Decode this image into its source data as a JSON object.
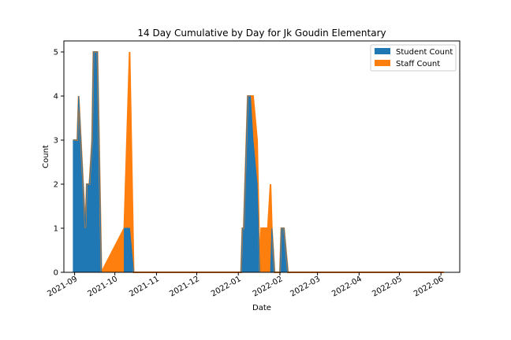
{
  "chart_data": {
    "type": "area",
    "title": "14 Day Cumulative by Day for Jk Goudin Elementary",
    "xlabel": "Date",
    "ylabel": "Count",
    "x_ticks": [
      "2021-09",
      "2021-10",
      "2021-11",
      "2021-12",
      "2022-01",
      "2022-02",
      "2022-03",
      "2022-04",
      "2022-05",
      "2022-06"
    ],
    "x_tick_dates": [
      "2021-09-01",
      "2021-10-01",
      "2021-11-01",
      "2021-12-01",
      "2022-01-01",
      "2022-02-01",
      "2022-03-01",
      "2022-04-01",
      "2022-05-01",
      "2022-06-01"
    ],
    "y_ticks": [
      "0",
      "1",
      "2",
      "3",
      "4",
      "5"
    ],
    "xlim": [
      "2021-08-24",
      "2022-06-15"
    ],
    "ylim": [
      0,
      5.25
    ],
    "grid": false,
    "legend_position": "top-right",
    "stacked": true,
    "series": [
      {
        "name": "Student Count",
        "color": "#1f77b4",
        "points": [
          [
            "2021-08-31",
            0
          ],
          [
            "2021-08-31",
            3
          ],
          [
            "2021-09-03",
            3
          ],
          [
            "2021-09-04",
            4
          ],
          [
            "2021-09-09",
            1
          ],
          [
            "2021-09-10",
            2
          ],
          [
            "2021-09-12",
            2
          ],
          [
            "2021-09-14",
            3
          ],
          [
            "2021-09-15",
            5
          ],
          [
            "2021-09-18",
            5
          ],
          [
            "2021-09-21",
            0
          ],
          [
            "2021-10-08",
            0
          ],
          [
            "2021-10-08",
            1
          ],
          [
            "2021-10-12",
            1
          ],
          [
            "2021-10-15",
            0
          ],
          [
            "2022-01-03",
            0
          ],
          [
            "2022-01-04",
            1
          ],
          [
            "2022-01-05",
            1
          ],
          [
            "2022-01-08",
            4
          ],
          [
            "2022-01-10",
            4
          ],
          [
            "2022-01-12",
            3
          ],
          [
            "2022-01-15",
            2
          ],
          [
            "2022-01-17",
            0
          ],
          [
            "2022-01-25",
            0
          ],
          [
            "2022-01-26",
            1
          ],
          [
            "2022-01-28",
            0
          ],
          [
            "2022-02-01",
            0
          ],
          [
            "2022-02-02",
            1
          ],
          [
            "2022-02-04",
            1
          ],
          [
            "2022-02-07",
            0
          ],
          [
            "2022-06-03",
            0
          ]
        ]
      },
      {
        "name": "Staff Count",
        "color": "#ff7f0e",
        "points": [
          [
            "2021-08-31",
            0
          ],
          [
            "2021-08-31",
            0
          ],
          [
            "2021-09-03",
            0
          ],
          [
            "2021-09-04",
            0
          ],
          [
            "2021-09-09",
            0
          ],
          [
            "2021-09-10",
            0
          ],
          [
            "2021-09-12",
            0
          ],
          [
            "2021-09-14",
            0
          ],
          [
            "2021-09-15",
            0
          ],
          [
            "2021-09-18",
            0
          ],
          [
            "2021-09-21",
            0
          ],
          [
            "2021-10-08",
            0
          ],
          [
            "2021-10-08",
            0
          ],
          [
            "2021-10-12",
            4
          ],
          [
            "2021-10-15",
            0
          ],
          [
            "2022-01-03",
            0
          ],
          [
            "2022-01-04",
            0
          ],
          [
            "2022-01-05",
            0
          ],
          [
            "2022-01-08",
            0
          ],
          [
            "2022-01-10",
            0
          ],
          [
            "2022-01-12",
            1
          ],
          [
            "2022-01-15",
            1
          ],
          [
            "2022-01-17",
            0
          ],
          [
            "2022-01-18",
            1
          ],
          [
            "2022-01-21",
            1
          ],
          [
            "2022-01-23",
            1
          ],
          [
            "2022-01-25",
            2
          ],
          [
            "2022-01-26",
            0
          ],
          [
            "2022-01-28",
            0
          ],
          [
            "2022-02-01",
            0
          ],
          [
            "2022-02-02",
            0
          ],
          [
            "2022-02-04",
            0
          ],
          [
            "2022-02-07",
            0
          ],
          [
            "2022-06-03",
            0
          ]
        ]
      }
    ]
  }
}
